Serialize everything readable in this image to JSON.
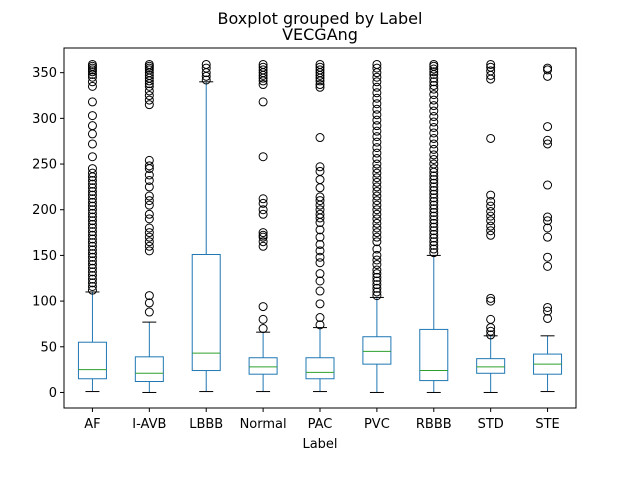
{
  "chart_data": {
    "type": "boxplot",
    "suptitle": "Boxplot grouped by Label",
    "title": "VECGAng",
    "xlabel": "Label",
    "ylabel": "",
    "ylim": [
      -17,
      377
    ],
    "yticks": [
      0,
      50,
      100,
      150,
      200,
      250,
      300,
      350
    ],
    "grid": false,
    "colors": {
      "box": "#1f77b4",
      "median": "#2ca02c",
      "flier": "#000000",
      "axes": "#000000"
    },
    "categories": [
      "AF",
      "I-AVB",
      "LBBB",
      "Normal",
      "PAC",
      "PVC",
      "RBBB",
      "STD",
      "STE"
    ],
    "boxes": [
      {
        "label": "AF",
        "whislo": 1,
        "q1": 15,
        "med": 25,
        "q3": 55,
        "whishi": 110,
        "fliers": [
          112,
          116,
          120,
          124,
          128,
          132,
          136,
          140,
          144,
          148,
          152,
          156,
          160,
          164,
          168,
          172,
          176,
          180,
          184,
          188,
          192,
          196,
          200,
          204,
          208,
          212,
          216,
          220,
          224,
          228,
          232,
          236,
          240,
          245,
          258,
          272,
          283,
          292,
          303,
          318,
          335,
          340,
          345,
          348,
          351,
          353,
          355,
          357,
          359
        ]
      },
      {
        "label": "I-AVB",
        "whislo": 0,
        "q1": 12,
        "med": 21,
        "q3": 39,
        "whishi": 77,
        "fliers": [
          88,
          98,
          106,
          155,
          160,
          165,
          170,
          175,
          180,
          190,
          195,
          205,
          210,
          215,
          225,
          232,
          238,
          245,
          248,
          254,
          315,
          320,
          325,
          330,
          335,
          338,
          341,
          344,
          347,
          350,
          353,
          355,
          357,
          359
        ]
      },
      {
        "label": "LBBB",
        "whislo": 1,
        "q1": 24,
        "med": 43,
        "q3": 151,
        "whishi": 340,
        "fliers": [
          342,
          346,
          350,
          355,
          359
        ]
      },
      {
        "label": "Normal",
        "whislo": 1,
        "q1": 20,
        "med": 28,
        "q3": 38,
        "whishi": 66,
        "fliers": [
          70,
          80,
          94,
          160,
          165,
          170,
          172,
          175,
          195,
          200,
          207,
          212,
          258,
          318,
          337,
          341,
          344,
          347,
          350,
          353,
          356,
          359
        ]
      },
      {
        "label": "PAC",
        "whislo": 1,
        "q1": 15,
        "med": 22,
        "q3": 38,
        "whishi": 71,
        "fliers": [
          74,
          82,
          97,
          111,
          122,
          130,
          142,
          148,
          155,
          162,
          170,
          178,
          186,
          191,
          195,
          200,
          205,
          210,
          214,
          224,
          233,
          242,
          247,
          279,
          334,
          337,
          341,
          344,
          347,
          350,
          353,
          356,
          359
        ]
      },
      {
        "label": "PVC",
        "whislo": 0,
        "q1": 31,
        "med": 45,
        "q3": 61,
        "whishi": 104,
        "fliers": [
          106,
          110,
          114,
          118,
          122,
          126,
          130,
          134,
          140,
          145,
          150,
          157,
          165,
          170,
          175,
          180,
          185,
          190,
          195,
          200,
          205,
          210,
          215,
          220,
          225,
          230,
          235,
          240,
          245,
          250,
          256,
          262,
          268,
          274,
          280,
          286,
          292,
          298,
          304,
          310,
          316,
          322,
          328,
          334,
          340,
          345,
          350,
          355,
          359
        ]
      },
      {
        "label": "RBBB",
        "whislo": 0,
        "q1": 13,
        "med": 24,
        "q3": 69,
        "whishi": 150,
        "fliers": [
          153,
          157,
          161,
          165,
          169,
          173,
          177,
          181,
          185,
          189,
          193,
          197,
          201,
          205,
          209,
          213,
          217,
          221,
          225,
          229,
          233,
          237,
          241,
          245,
          250,
          255,
          260,
          266,
          272,
          278,
          284,
          290,
          296,
          302,
          308,
          314,
          320,
          326,
          332,
          336,
          340,
          344,
          348,
          351,
          354,
          357,
          359
        ]
      },
      {
        "label": "STD",
        "whislo": 0,
        "q1": 21,
        "med": 28,
        "q3": 37,
        "whishi": 62,
        "fliers": [
          63,
          67,
          71,
          80,
          100,
          103,
          172,
          177,
          182,
          188,
          193,
          198,
          204,
          209,
          216,
          278,
          343,
          347,
          352,
          356,
          359
        ]
      },
      {
        "label": "STE",
        "whislo": 1,
        "q1": 20,
        "med": 31,
        "q3": 42,
        "whishi": 62,
        "fliers": [
          81,
          89,
          93,
          138,
          148,
          170,
          180,
          188,
          192,
          227,
          272,
          276,
          291,
          346,
          353,
          355
        ]
      }
    ]
  }
}
